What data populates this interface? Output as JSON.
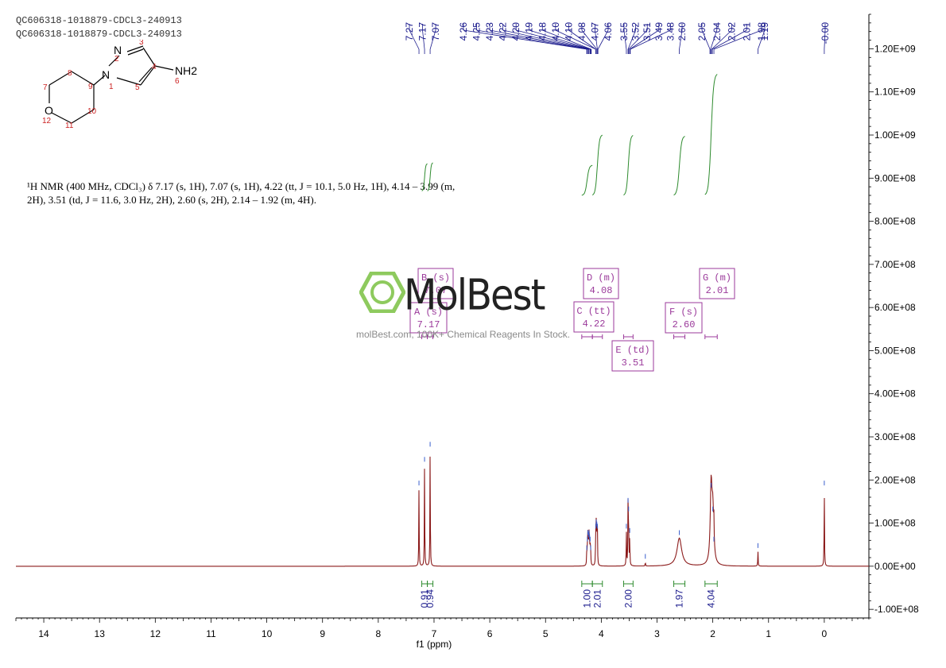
{
  "header_lines": [
    "QC606318-1018879-CDCL3-240913",
    "QC606318-1018879-CDCL3-240913"
  ],
  "structure": {
    "atoms": [
      "N",
      "N",
      "NH2",
      "O"
    ],
    "numbers": [
      "1",
      "2",
      "3",
      "4",
      "5",
      "6",
      "7",
      "8",
      "9",
      "10",
      "11",
      "12"
    ]
  },
  "nmr_text": {
    "line1": "¹H NMR (400 MHz, CDCl₃) δ 7.17 (s, 1H), 7.07 (s, 1H), 4.22 (tt, J = 10.1, 5.0 Hz, 1H), 4.14 – 3.99 (m,",
    "line2": "2H), 3.51 (td, J = 11.6, 3.0 Hz, 2H), 2.60 (s, 2H), 2.14 – 1.92 (m, 4H)."
  },
  "watermark": {
    "brand": "MolBest",
    "tagline": "molBest.com, 100K+ Chemical Reagents In Stock."
  },
  "colors": {
    "spectrum": "#8b1a1a",
    "peak_labels": "#1a1a8c",
    "integrals": "#2e8b2e",
    "multiplets": "#9b3a9b",
    "logo_green": "#7ac142"
  },
  "chart_data": {
    "type": "line",
    "xlabel": "f1 (ppm)",
    "xlim": [
      14.5,
      -0.8
    ],
    "ylim": [
      -120000000.0,
      1280000000.0
    ],
    "x_reversed": true,
    "x_ticks": [
      "14",
      "13",
      "12",
      "11",
      "10",
      "9",
      "8",
      "7",
      "6",
      "5",
      "4",
      "3",
      "2",
      "1",
      "0"
    ],
    "x_tick_values": [
      14,
      13,
      12,
      11,
      10,
      9,
      8,
      7,
      6,
      5,
      4,
      3,
      2,
      1,
      0
    ],
    "y_ticks": [
      "-1.00E+08",
      "0.00E+00",
      "1.00E+08",
      "2.00E+08",
      "3.00E+08",
      "4.00E+08",
      "5.00E+08",
      "6.00E+08",
      "7.00E+08",
      "8.00E+08",
      "9.00E+08",
      "1.00E+09",
      "1.10E+09",
      "1.20E+09"
    ],
    "y_tick_values": [
      -100000000.0,
      0,
      100000000.0,
      200000000.0,
      300000000.0,
      400000000.0,
      500000000.0,
      600000000.0,
      700000000.0,
      800000000.0,
      900000000.0,
      1000000000.0,
      1100000000.0,
      1200000000.0
    ],
    "y_axis_side": "right",
    "peaks": [
      {
        "ppm": 7.27,
        "h": 180000000.0
      },
      {
        "ppm": 7.17,
        "h": 235000000.0
      },
      {
        "ppm": 7.07,
        "h": 270000000.0
      },
      {
        "ppm": 4.26,
        "h": 30000000.0
      },
      {
        "ppm": 4.25,
        "h": 50000000.0
      },
      {
        "ppm": 4.24,
        "h": 65000000.0
      },
      {
        "ppm": 4.23,
        "h": 60000000.0
      },
      {
        "ppm": 4.22,
        "h": 65000000.0
      },
      {
        "ppm": 4.21,
        "h": 55000000.0
      },
      {
        "ppm": 4.2,
        "h": 50000000.0
      },
      {
        "ppm": 4.19,
        "h": 30000000.0
      },
      {
        "ppm": 4.1,
        "h": 80000000.0
      },
      {
        "ppm": 4.09,
        "h": 90000000.0
      },
      {
        "ppm": 4.08,
        "h": 85000000.0
      },
      {
        "ppm": 4.07,
        "h": 80000000.0
      },
      {
        "ppm": 3.55,
        "h": 80000000.0
      },
      {
        "ppm": 3.52,
        "h": 140000000.0
      },
      {
        "ppm": 3.51,
        "h": 120000000.0
      },
      {
        "ppm": 3.49,
        "h": 70000000.0
      },
      {
        "ppm": 3.21,
        "h": 10000000.0
      },
      {
        "ppm": 1.98,
        "h": 50000000.0
      },
      {
        "ppm": 1.19,
        "h": 35000000.0
      },
      {
        "ppm": 0.0,
        "h": 180000000.0
      }
    ],
    "broad_peaks": [
      {
        "ppm": 2.6,
        "h": 65000000.0,
        "w": 0.05
      },
      {
        "ppm": 2.03,
        "h": 175000000.0,
        "w": 0.018
      },
      {
        "ppm": 2.0,
        "h": 120000000.0,
        "w": 0.02
      }
    ],
    "peak_labels": [
      "7.27",
      "7.17",
      "7.07",
      "4.26",
      "4.25",
      "4.23",
      "4.22",
      "4.20",
      "4.19",
      "4.18",
      "4.10",
      "4.10",
      "4.08",
      "4.07",
      "4.06",
      "3.55",
      "3.52",
      "3.51",
      "3.49",
      "3.48",
      "2.60",
      "2.05",
      "2.04",
      "2.02",
      "2.01",
      "1.98",
      "1.19",
      "-0.00"
    ],
    "integrals": [
      {
        "from": 7.22,
        "to": 7.12,
        "value": "0.91"
      },
      {
        "from": 7.12,
        "to": 7.02,
        "value": "0.94"
      },
      {
        "from": 4.35,
        "to": 4.16,
        "value": "1.00"
      },
      {
        "from": 4.16,
        "to": 3.98,
        "value": "2.01"
      },
      {
        "from": 3.6,
        "to": 3.43,
        "value": "2.00"
      },
      {
        "from": 2.7,
        "to": 2.5,
        "value": "1.97"
      },
      {
        "from": 2.14,
        "to": 1.92,
        "value": "4.04"
      }
    ],
    "multiplets": [
      {
        "label": "A (s)",
        "shift": "7.17"
      },
      {
        "label": "B (s)",
        "shift": "7.07"
      },
      {
        "label": "C (tt)",
        "shift": "4.22"
      },
      {
        "label": "D (m)",
        "shift": "4.08"
      },
      {
        "label": "E (td)",
        "shift": "3.51"
      },
      {
        "label": "F (s)",
        "shift": "2.60"
      },
      {
        "label": "G (m)",
        "shift": "2.01"
      }
    ]
  }
}
